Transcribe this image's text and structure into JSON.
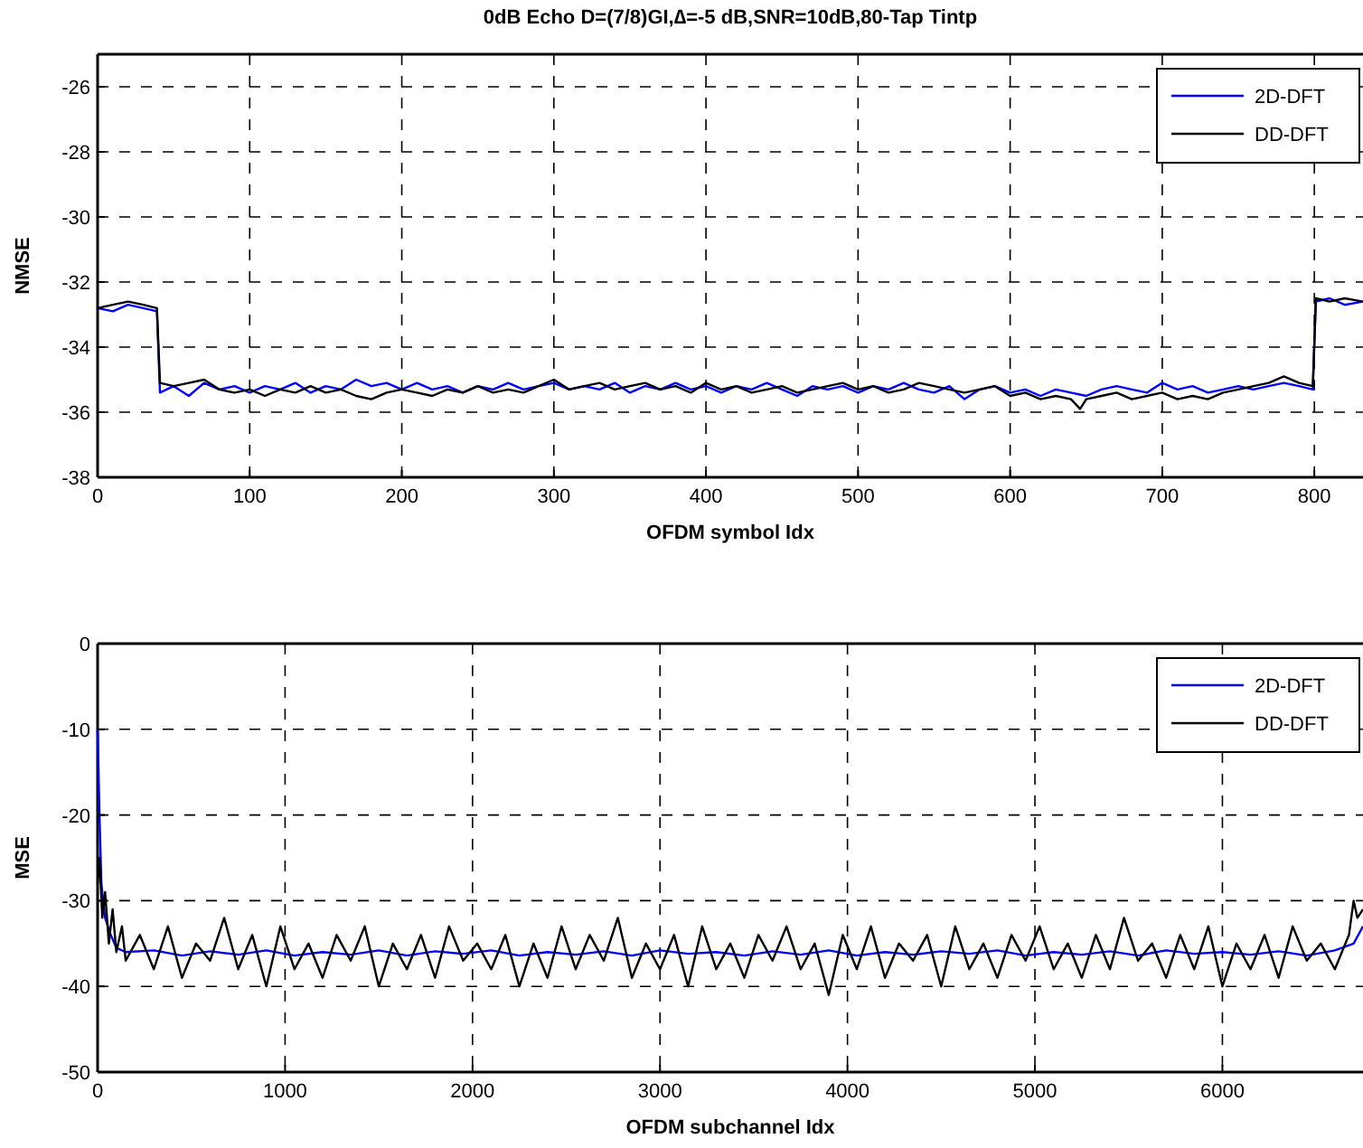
{
  "chart_data": [
    {
      "type": "line",
      "title": "0dB Echo D=(7/8)GI,∆=-5 dB,SNR=10dB,80-Tap Tintp",
      "xlabel": "OFDM symbol Idx",
      "ylabel": "NMSE",
      "xlim": [
        0,
        832
      ],
      "xticks": [
        0,
        100,
        200,
        300,
        400,
        500,
        600,
        700,
        800
      ],
      "ylim": [
        -38,
        -25
      ],
      "yticks": [
        -38,
        -36,
        -34,
        -32,
        -30,
        -28,
        -26
      ],
      "grid": true,
      "legend": "top right",
      "line_style": "solid",
      "series": [
        {
          "name": "2D-DFT",
          "color": "#0000ff",
          "x": [
            0,
            10,
            20,
            30,
            39,
            41,
            50,
            60,
            70,
            80,
            90,
            100,
            110,
            120,
            130,
            140,
            150,
            160,
            170,
            180,
            190,
            200,
            210,
            220,
            230,
            240,
            250,
            260,
            270,
            280,
            290,
            300,
            310,
            320,
            330,
            340,
            350,
            360,
            370,
            380,
            390,
            400,
            410,
            420,
            430,
            440,
            450,
            460,
            470,
            480,
            490,
            500,
            510,
            520,
            530,
            540,
            550,
            560,
            570,
            580,
            590,
            600,
            610,
            620,
            630,
            640,
            650,
            660,
            670,
            680,
            690,
            700,
            710,
            720,
            730,
            740,
            750,
            760,
            770,
            780,
            790,
            799,
            801,
            810,
            820,
            832
          ],
          "values": [
            -32.8,
            -32.9,
            -32.7,
            -32.8,
            -32.9,
            -35.4,
            -35.2,
            -35.5,
            -35.1,
            -35.3,
            -35.2,
            -35.4,
            -35.2,
            -35.3,
            -35.1,
            -35.4,
            -35.2,
            -35.3,
            -35.0,
            -35.2,
            -35.1,
            -35.3,
            -35.1,
            -35.3,
            -35.2,
            -35.4,
            -35.2,
            -35.3,
            -35.1,
            -35.3,
            -35.2,
            -35.1,
            -35.3,
            -35.2,
            -35.3,
            -35.1,
            -35.4,
            -35.2,
            -35.3,
            -35.1,
            -35.3,
            -35.2,
            -35.4,
            -35.2,
            -35.3,
            -35.1,
            -35.3,
            -35.5,
            -35.2,
            -35.3,
            -35.2,
            -35.4,
            -35.2,
            -35.3,
            -35.1,
            -35.3,
            -35.4,
            -35.2,
            -35.6,
            -35.3,
            -35.2,
            -35.4,
            -35.3,
            -35.5,
            -35.3,
            -35.4,
            -35.5,
            -35.3,
            -35.2,
            -35.3,
            -35.4,
            -35.1,
            -35.3,
            -35.2,
            -35.4,
            -35.3,
            -35.2,
            -35.3,
            -35.2,
            -35.1,
            -35.2,
            -35.3,
            -32.6,
            -32.5,
            -32.7,
            -32.6
          ]
        },
        {
          "name": "DD-DFT",
          "color": "#000000",
          "x": [
            0,
            10,
            20,
            30,
            39,
            41,
            50,
            60,
            70,
            80,
            90,
            100,
            110,
            120,
            130,
            140,
            150,
            160,
            170,
            180,
            190,
            200,
            210,
            220,
            230,
            240,
            250,
            260,
            270,
            280,
            290,
            300,
            310,
            320,
            330,
            340,
            350,
            360,
            370,
            380,
            390,
            400,
            410,
            420,
            430,
            440,
            450,
            460,
            470,
            480,
            490,
            500,
            510,
            520,
            530,
            540,
            550,
            560,
            570,
            580,
            590,
            600,
            610,
            620,
            630,
            640,
            646,
            650,
            660,
            670,
            680,
            690,
            700,
            710,
            720,
            730,
            740,
            750,
            760,
            770,
            780,
            790,
            799,
            801,
            810,
            820,
            832
          ],
          "values": [
            -32.8,
            -32.7,
            -32.6,
            -32.7,
            -32.8,
            -35.1,
            -35.2,
            -35.1,
            -35.0,
            -35.3,
            -35.4,
            -35.3,
            -35.5,
            -35.3,
            -35.4,
            -35.2,
            -35.4,
            -35.3,
            -35.5,
            -35.6,
            -35.4,
            -35.3,
            -35.4,
            -35.5,
            -35.3,
            -35.4,
            -35.2,
            -35.4,
            -35.3,
            -35.4,
            -35.2,
            -35.0,
            -35.3,
            -35.2,
            -35.1,
            -35.3,
            -35.2,
            -35.1,
            -35.3,
            -35.2,
            -35.4,
            -35.1,
            -35.3,
            -35.2,
            -35.4,
            -35.3,
            -35.2,
            -35.4,
            -35.3,
            -35.2,
            -35.1,
            -35.3,
            -35.2,
            -35.4,
            -35.3,
            -35.1,
            -35.2,
            -35.3,
            -35.4,
            -35.3,
            -35.2,
            -35.5,
            -35.4,
            -35.6,
            -35.5,
            -35.6,
            -35.9,
            -35.6,
            -35.5,
            -35.4,
            -35.6,
            -35.5,
            -35.4,
            -35.6,
            -35.5,
            -35.6,
            -35.4,
            -35.3,
            -35.2,
            -35.1,
            -34.9,
            -35.1,
            -35.2,
            -32.5,
            -32.6,
            -32.5,
            -32.6
          ]
        }
      ]
    },
    {
      "type": "line",
      "xlabel": "OFDM subchannel Idx",
      "ylabel": "MSE",
      "xlim": [
        0,
        6750
      ],
      "xticks": [
        0,
        1000,
        2000,
        3000,
        4000,
        5000,
        6000
      ],
      "ylim": [
        -50,
        0
      ],
      "yticks": [
        -50,
        -40,
        -30,
        -20,
        -10,
        0
      ],
      "grid": true,
      "legend": "top right",
      "line_style": "solid",
      "series": [
        {
          "name": "2D-DFT",
          "color": "#0000ff",
          "x": [
            0,
            10,
            20,
            40,
            70,
            100,
            150,
            300,
            450,
            600,
            750,
            900,
            1050,
            1200,
            1350,
            1500,
            1650,
            1800,
            1950,
            2100,
            2250,
            2400,
            2550,
            2700,
            2850,
            3000,
            3150,
            3300,
            3450,
            3600,
            3750,
            3900,
            4050,
            4200,
            4350,
            4500,
            4650,
            4800,
            4950,
            5100,
            5250,
            5400,
            5550,
            5700,
            5850,
            6000,
            6150,
            6300,
            6450,
            6600,
            6700,
            6750
          ],
          "values": [
            -10,
            -20,
            -28,
            -32,
            -34,
            -35.5,
            -36,
            -35.8,
            -36.4,
            -35.9,
            -36.3,
            -35.8,
            -36.4,
            -36,
            -36.3,
            -35.8,
            -36.4,
            -35.9,
            -36.2,
            -35.8,
            -36.4,
            -36,
            -36.3,
            -35.9,
            -36.4,
            -35.8,
            -36.2,
            -36,
            -36.4,
            -35.9,
            -36.3,
            -35.8,
            -36.4,
            -36,
            -36.3,
            -35.9,
            -36.2,
            -35.8,
            -36.4,
            -36,
            -36.3,
            -35.9,
            -36.4,
            -35.8,
            -36.2,
            -36,
            -36.3,
            -35.9,
            -36.4,
            -35.8,
            -35,
            -33
          ]
        },
        {
          "name": "DD-DFT",
          "color": "#000000",
          "x": [
            0,
            10,
            25,
            40,
            60,
            80,
            100,
            130,
            150,
            225,
            300,
            375,
            450,
            525,
            600,
            675,
            750,
            825,
            900,
            975,
            1050,
            1125,
            1200,
            1275,
            1350,
            1425,
            1500,
            1575,
            1650,
            1725,
            1800,
            1875,
            1950,
            2025,
            2100,
            2175,
            2250,
            2325,
            2400,
            2475,
            2550,
            2625,
            2700,
            2775,
            2850,
            2925,
            3000,
            3075,
            3150,
            3225,
            3300,
            3375,
            3450,
            3525,
            3600,
            3675,
            3750,
            3825,
            3900,
            3975,
            4050,
            4125,
            4200,
            4275,
            4350,
            4425,
            4500,
            4575,
            4650,
            4725,
            4800,
            4875,
            4950,
            5025,
            5100,
            5175,
            5250,
            5325,
            5400,
            5475,
            5550,
            5625,
            5700,
            5775,
            5850,
            5925,
            6000,
            6075,
            6150,
            6225,
            6300,
            6375,
            6450,
            6525,
            6600,
            6675,
            6700,
            6720,
            6750
          ],
          "values": [
            -28,
            -25,
            -32,
            -29,
            -35,
            -31,
            -36,
            -33,
            -37,
            -34,
            -38,
            -33,
            -39,
            -35,
            -37,
            -32,
            -38,
            -34,
            -40,
            -33,
            -38,
            -35,
            -39,
            -34,
            -37,
            -33,
            -40,
            -35,
            -38,
            -34,
            -39,
            -33,
            -37,
            -35,
            -38,
            -34,
            -40,
            -35,
            -39,
            -33,
            -38,
            -34,
            -37,
            -32,
            -39,
            -35,
            -38,
            -34,
            -40,
            -33,
            -38,
            -35,
            -39,
            -34,
            -37,
            -33,
            -38,
            -35,
            -41,
            -34,
            -38,
            -33,
            -39,
            -35,
            -37,
            -34,
            -40,
            -33,
            -38,
            -35,
            -39,
            -34,
            -37,
            -33,
            -38,
            -35,
            -39,
            -34,
            -38,
            -32,
            -37,
            -35,
            -39,
            -34,
            -38,
            -33,
            -40,
            -35,
            -38,
            -34,
            -39,
            -33,
            -37,
            -35,
            -38,
            -34,
            -30,
            -32,
            -31
          ]
        }
      ]
    }
  ]
}
